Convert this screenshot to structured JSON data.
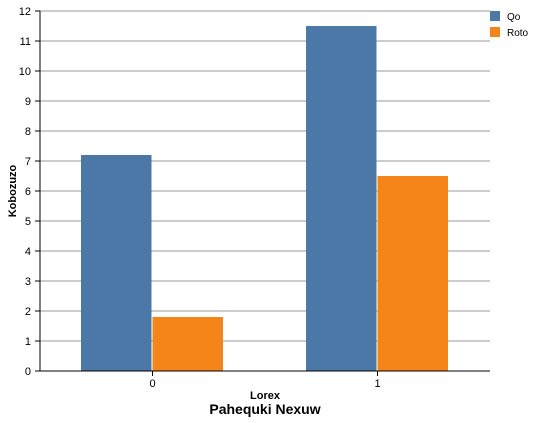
{
  "chart_data": {
    "type": "bar",
    "title": "Pahequki Nexuw",
    "xlabel": "Lorex",
    "ylabel": "Kobozuzo",
    "categories": [
      "0",
      "1"
    ],
    "series": [
      {
        "name": "Qo",
        "values": [
          7.2,
          11.5
        ],
        "color": "#4c78a8"
      },
      {
        "name": "Roto",
        "values": [
          1.8,
          6.5
        ],
        "color": "#f58518"
      }
    ],
    "ylim": [
      0,
      12
    ],
    "yticks": [
      "0",
      "1",
      "2",
      "3",
      "4",
      "5",
      "6",
      "7",
      "8",
      "9",
      "10",
      "11",
      "12"
    ],
    "grid": true,
    "legend_position": "top-right"
  }
}
